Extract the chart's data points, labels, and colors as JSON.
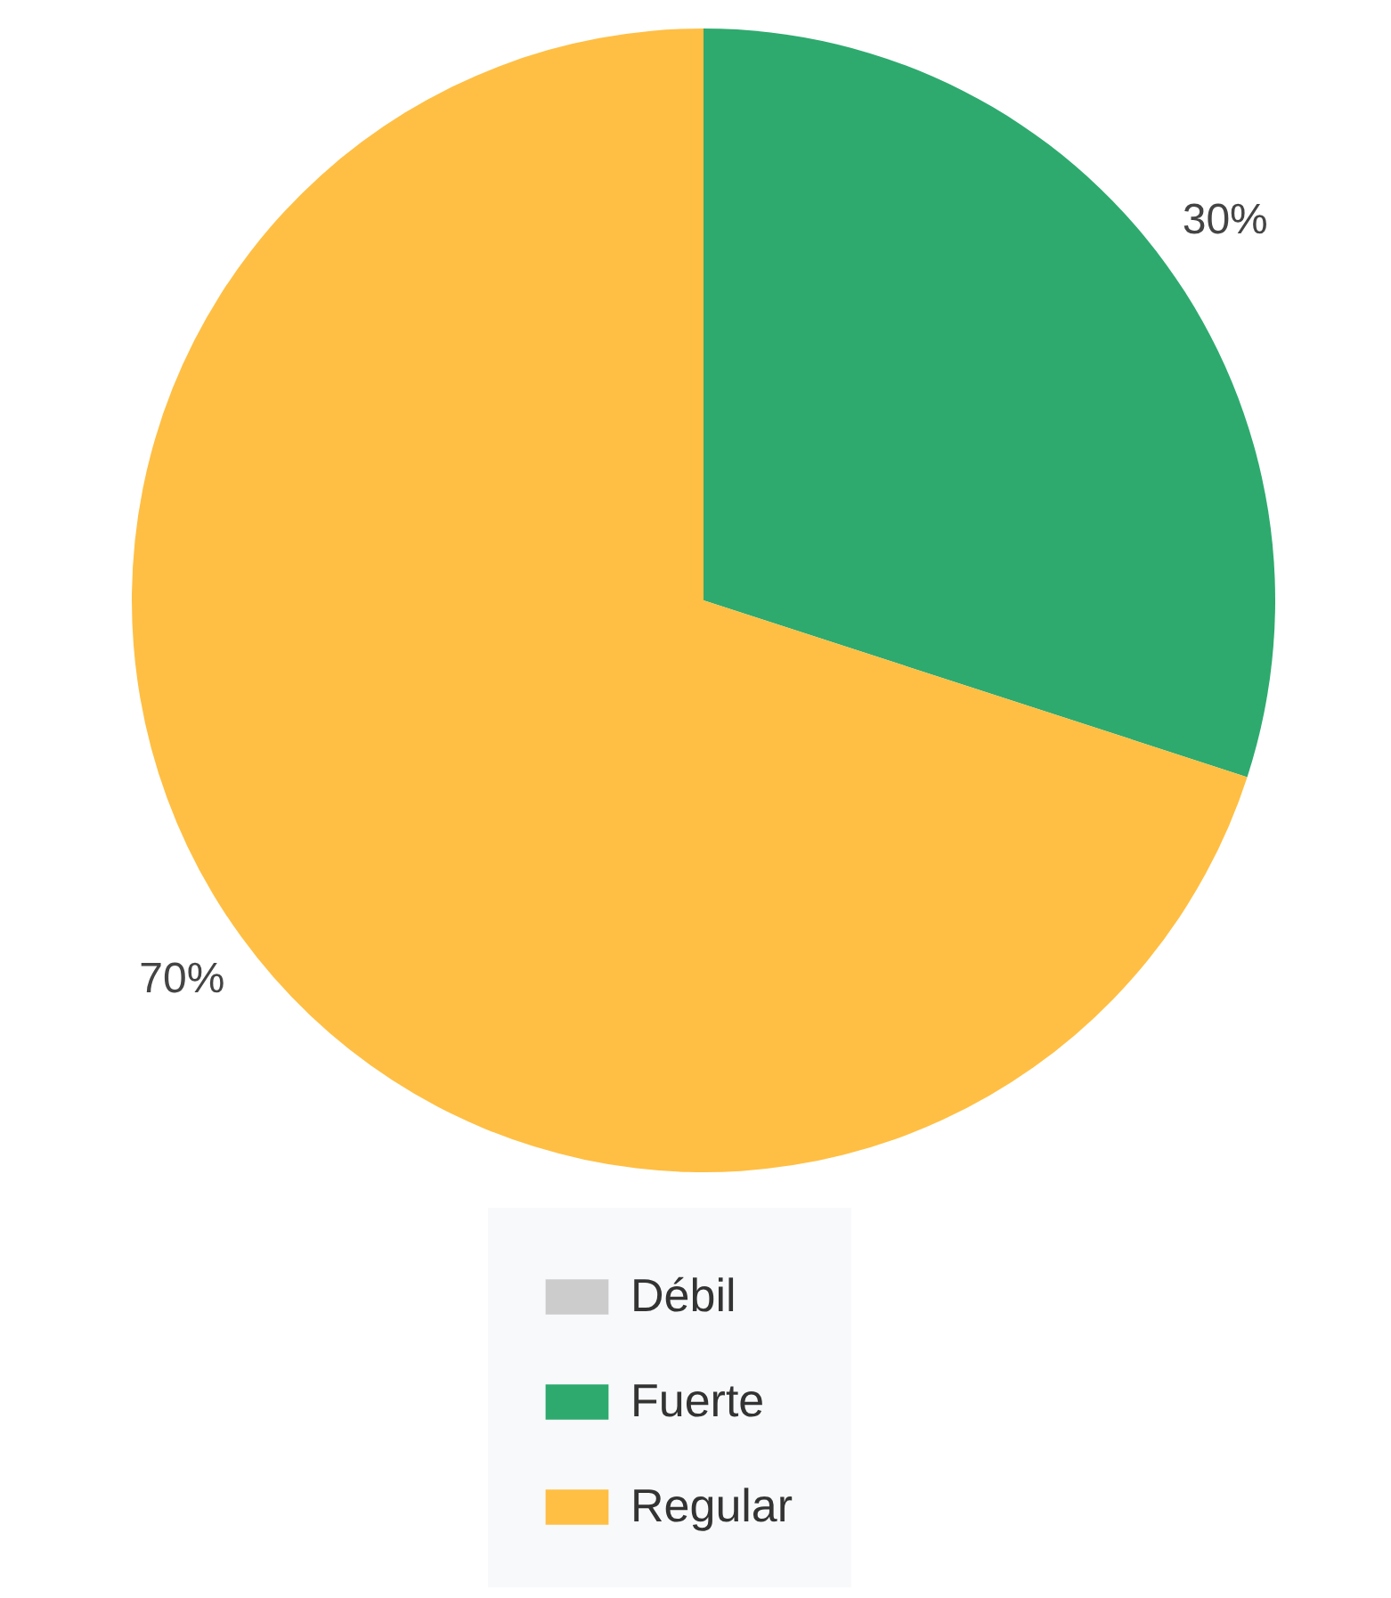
{
  "chart_data": {
    "type": "pie",
    "categories": [
      "Débil",
      "Fuerte",
      "Regular"
    ],
    "values": [
      0,
      30,
      70
    ],
    "colors": [
      "#cccccc",
      "#2eaa6e",
      "#ffbf44"
    ],
    "value_labels": [
      null,
      "30%",
      "70%"
    ],
    "legend": "bottom"
  }
}
